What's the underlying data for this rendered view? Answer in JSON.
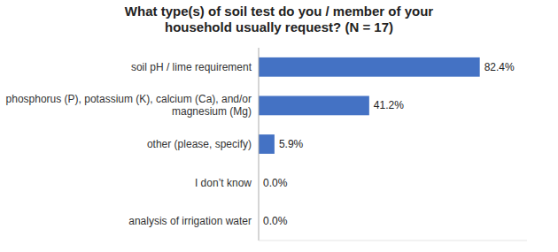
{
  "chart_data": {
    "type": "bar",
    "orientation": "horizontal",
    "title": "What type(s) of soil test do you / member of your\nhousehold usually request? (N = 17)",
    "categories": [
      "analysis of irrigation water",
      "I don’t know",
      "other (please, specify)",
      "phosphorus (P), potassium (K), calcium (Ca), and/or\nmagnesium (Mg)",
      "soil pH / lime requirement"
    ],
    "values": [
      0.0,
      0.0,
      5.9,
      41.2,
      82.4
    ],
    "value_labels": [
      "0.0%",
      "0.0%",
      "5.9%",
      "41.2%",
      "82.4%"
    ],
    "data_labels": true,
    "color": "#4472C4",
    "xlim": [
      0,
      100
    ],
    "tick_labels": "y",
    "grid": false
  }
}
